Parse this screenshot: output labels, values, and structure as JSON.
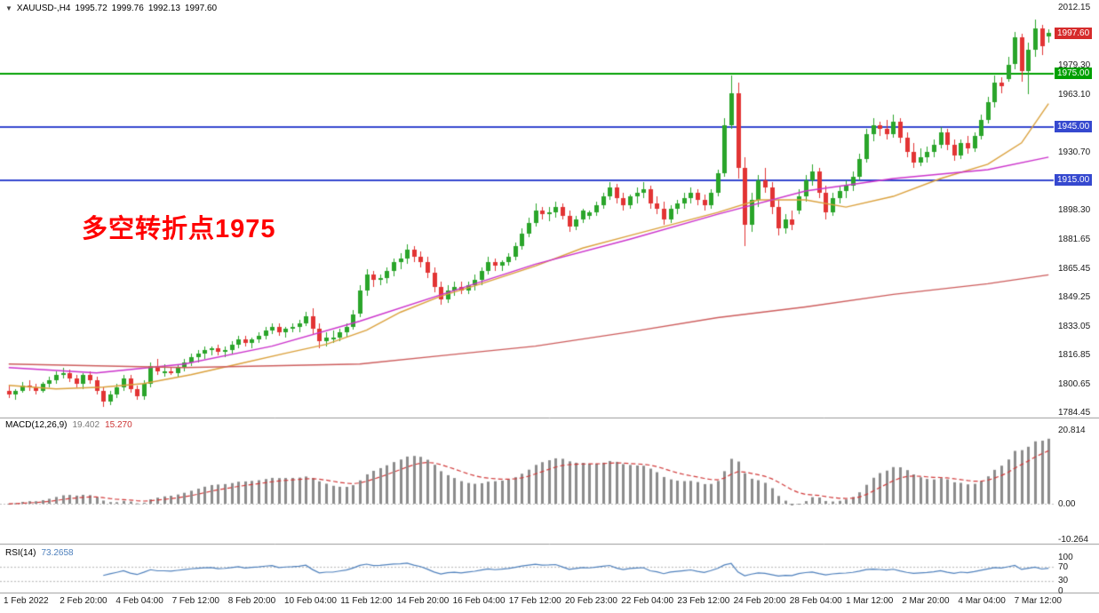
{
  "title_bar": {
    "collapse_icon": "▼",
    "symbol_period": "XAUUSD-,H4",
    "open": "1995.72",
    "high": "1999.76",
    "low": "1992.13",
    "close": "1997.60"
  },
  "annotation": {
    "text": "多空转折点1975",
    "color": "#ff0000"
  },
  "price_axis": {
    "labels": [
      {
        "text": "2012.15",
        "price": 2012.15
      },
      {
        "text": "1979.30",
        "price": 1979.3
      },
      {
        "text": "1963.10",
        "price": 1963.1
      },
      {
        "text": "1930.70",
        "price": 1930.7
      },
      {
        "text": "1898.30",
        "price": 1898.3
      },
      {
        "text": "1881.65",
        "price": 1881.65
      },
      {
        "text": "1865.45",
        "price": 1865.45
      },
      {
        "text": "1849.25",
        "price": 1849.25
      },
      {
        "text": "1833.05",
        "price": 1833.05
      },
      {
        "text": "1816.85",
        "price": 1816.85
      },
      {
        "text": "1800.65",
        "price": 1800.65
      },
      {
        "text": "1784.45",
        "price": 1784.45
      }
    ],
    "boxed": [
      {
        "text": "1997.60",
        "price": 1997.6,
        "bg": "#d62b2b"
      },
      {
        "text": "1975.00",
        "price": 1975.0,
        "bg": "#00a000"
      },
      {
        "text": "1945.00",
        "price": 1945.0,
        "bg": "#3548cf"
      },
      {
        "text": "1915.00",
        "price": 1915.0,
        "bg": "#3548cf"
      }
    ]
  },
  "macd_panel": {
    "label": "MACD(12,26,9)",
    "value_main": "19.402",
    "value_signal": "15.270",
    "axis": [
      "20.814",
      "0.00",
      "-10.264"
    ],
    "axis_values": [
      20.814,
      0,
      -10.264
    ]
  },
  "rsi_panel": {
    "label": "RSI(14)",
    "value": "73.2658",
    "axis": [
      "100",
      "70",
      "30",
      "0"
    ],
    "axis_values": [
      100,
      70,
      30,
      0
    ],
    "levels": [
      70,
      30
    ]
  },
  "chart_data": {
    "type": "candlestick",
    "symbol": "XAUUSD-",
    "timeframe": "H4",
    "ohlc_current": {
      "open": 1995.72,
      "high": 1999.76,
      "low": 1992.13,
      "close": 1997.6
    },
    "y_axis": {
      "min": 1784.45,
      "max": 2012.15,
      "tick_step": 16.2
    },
    "up_color": "#2aa52a",
    "down_color": "#e23434",
    "x_labels": [
      "1 Feb 2022",
      "2 Feb 20:00",
      "4 Feb 04:00",
      "7 Feb 12:00",
      "8 Feb 20:00",
      "10 Feb 04:00",
      "11 Feb 12:00",
      "14 Feb 20:00",
      "16 Feb 04:00",
      "17 Feb 12:00",
      "20 Feb 23:00",
      "22 Feb 04:00",
      "23 Feb 12:00",
      "24 Feb 20:00",
      "28 Feb 04:00",
      "1 Mar 12:00",
      "2 Mar 20:00",
      "4 Mar 04:00",
      "7 Mar 12:00"
    ],
    "horizontal_lines": [
      {
        "price": 1975.0,
        "color": "#00a000",
        "width": 2
      },
      {
        "price": 1945.0,
        "color": "#3548cf",
        "width": 2
      },
      {
        "price": 1915.0,
        "color": "#3548cf",
        "width": 2
      }
    ],
    "moving_averages": [
      {
        "name": "ma-fast",
        "color": "#dba13c",
        "points": [
          [
            0,
            1800
          ],
          [
            7,
            1798
          ],
          [
            14,
            1799
          ],
          [
            20,
            1801
          ],
          [
            27,
            1806
          ],
          [
            34,
            1812
          ],
          [
            41,
            1818
          ],
          [
            47,
            1823
          ],
          [
            53,
            1831
          ],
          [
            58,
            1841
          ],
          [
            64,
            1850
          ],
          [
            70,
            1857
          ],
          [
            78,
            1867
          ],
          [
            85,
            1877
          ],
          [
            92,
            1884
          ],
          [
            99,
            1891
          ],
          [
            105,
            1897
          ],
          [
            111,
            1904
          ],
          [
            118,
            1904
          ],
          [
            124,
            1900
          ],
          [
            131,
            1906
          ],
          [
            138,
            1916
          ],
          [
            145,
            1924
          ],
          [
            150,
            1936
          ],
          [
            154,
            1958
          ]
        ]
      },
      {
        "name": "ma-mid",
        "color": "#cc33cc",
        "points": [
          [
            0,
            1810
          ],
          [
            13,
            1807
          ],
          [
            26,
            1812
          ],
          [
            39,
            1822
          ],
          [
            52,
            1836
          ],
          [
            65,
            1852
          ],
          [
            78,
            1868
          ],
          [
            92,
            1882
          ],
          [
            105,
            1896
          ],
          [
            118,
            1909
          ],
          [
            131,
            1916
          ],
          [
            145,
            1921
          ],
          [
            154,
            1928
          ]
        ]
      },
      {
        "name": "ma-slow",
        "color": "#cd5c5c",
        "points": [
          [
            0,
            1812
          ],
          [
            26,
            1810
          ],
          [
            52,
            1812
          ],
          [
            65,
            1817
          ],
          [
            78,
            1822
          ],
          [
            92,
            1830
          ],
          [
            105,
            1838
          ],
          [
            118,
            1844
          ],
          [
            131,
            1851
          ],
          [
            145,
            1857
          ],
          [
            154,
            1862
          ]
        ]
      }
    ],
    "indicators": [
      {
        "type": "MACD",
        "params": [
          12,
          26,
          9
        ],
        "current_macd": 19.402,
        "current_signal": 15.27,
        "axis_ticks": [
          20.814,
          0.0,
          -10.264
        ]
      },
      {
        "type": "RSI",
        "params": [
          14
        ],
        "current": 73.2658,
        "axis_ticks": [
          100,
          70,
          30,
          0
        ],
        "levels": [
          70,
          30
        ]
      }
    ],
    "candles": [
      [
        1797,
        1800,
        1793,
        1795
      ],
      [
        1795,
        1798,
        1792,
        1797
      ],
      [
        1797,
        1802,
        1796,
        1800
      ],
      [
        1800,
        1803,
        1797,
        1799
      ],
      [
        1799,
        1801,
        1795,
        1797
      ],
      [
        1797,
        1802,
        1796,
        1801
      ],
      [
        1801,
        1805,
        1799,
        1803
      ],
      [
        1803,
        1808,
        1801,
        1806
      ],
      [
        1806,
        1810,
        1804,
        1807
      ],
      [
        1807,
        1809,
        1802,
        1804
      ],
      [
        1804,
        1806,
        1799,
        1801
      ],
      [
        1801,
        1807,
        1798,
        1806
      ],
      [
        1806,
        1808,
        1801,
        1803
      ],
      [
        1803,
        1805,
        1795,
        1797
      ],
      [
        1797,
        1799,
        1788,
        1791
      ],
      [
        1791,
        1797,
        1789,
        1795
      ],
      [
        1795,
        1801,
        1793,
        1799
      ],
      [
        1799,
        1806,
        1797,
        1804
      ],
      [
        1804,
        1806,
        1796,
        1798
      ],
      [
        1798,
        1800,
        1792,
        1794
      ],
      [
        1794,
        1803,
        1792,
        1801
      ],
      [
        1801,
        1813,
        1799,
        1811
      ],
      [
        1811,
        1815,
        1806,
        1808
      ],
      [
        1808,
        1812,
        1805,
        1808
      ],
      [
        1808,
        1810,
        1806,
        1807
      ],
      [
        1807,
        1812,
        1805,
        1810
      ],
      [
        1810,
        1815,
        1808,
        1813
      ],
      [
        1813,
        1818,
        1811,
        1816
      ],
      [
        1816,
        1820,
        1813,
        1818
      ],
      [
        1818,
        1822,
        1815,
        1820
      ],
      [
        1820,
        1822,
        1817,
        1821
      ],
      [
        1821,
        1823,
        1817,
        1819
      ],
      [
        1819,
        1822,
        1816,
        1820
      ],
      [
        1820,
        1825,
        1818,
        1823
      ],
      [
        1823,
        1828,
        1821,
        1826
      ],
      [
        1826,
        1828,
        1822,
        1824
      ],
      [
        1824,
        1827,
        1821,
        1826
      ],
      [
        1826,
        1830,
        1824,
        1828
      ],
      [
        1828,
        1833,
        1826,
        1831
      ],
      [
        1831,
        1835,
        1829,
        1833
      ],
      [
        1833,
        1835,
        1828,
        1830
      ],
      [
        1830,
        1833,
        1827,
        1832
      ],
      [
        1832,
        1835,
        1830,
        1833
      ],
      [
        1833,
        1837,
        1830,
        1835
      ],
      [
        1835,
        1841,
        1833,
        1839
      ],
      [
        1839,
        1843,
        1828,
        1832
      ],
      [
        1832,
        1835,
        1821,
        1825
      ],
      [
        1825,
        1830,
        1822,
        1827
      ],
      [
        1827,
        1831,
        1824,
        1827
      ],
      [
        1827,
        1832,
        1825,
        1830
      ],
      [
        1830,
        1835,
        1827,
        1833
      ],
      [
        1833,
        1842,
        1831,
        1840
      ],
      [
        1840,
        1856,
        1838,
        1853
      ],
      [
        1853,
        1865,
        1850,
        1862
      ],
      [
        1862,
        1864,
        1855,
        1859
      ],
      [
        1859,
        1862,
        1856,
        1860
      ],
      [
        1860,
        1866,
        1857,
        1864
      ],
      [
        1864,
        1871,
        1861,
        1869
      ],
      [
        1869,
        1874,
        1865,
        1871
      ],
      [
        1871,
        1879,
        1868,
        1876
      ],
      [
        1876,
        1878,
        1869,
        1872
      ],
      [
        1872,
        1875,
        1866,
        1869
      ],
      [
        1869,
        1872,
        1860,
        1863
      ],
      [
        1863,
        1866,
        1852,
        1855
      ],
      [
        1855,
        1858,
        1845,
        1848
      ],
      [
        1848,
        1856,
        1846,
        1853
      ],
      [
        1853,
        1858,
        1850,
        1855
      ],
      [
        1855,
        1858,
        1851,
        1853
      ],
      [
        1853,
        1858,
        1851,
        1856
      ],
      [
        1856,
        1862,
        1853,
        1859
      ],
      [
        1859,
        1866,
        1856,
        1864
      ],
      [
        1864,
        1872,
        1862,
        1869
      ],
      [
        1869,
        1871,
        1864,
        1867
      ],
      [
        1867,
        1870,
        1864,
        1869
      ],
      [
        1869,
        1874,
        1867,
        1872
      ],
      [
        1872,
        1880,
        1870,
        1878
      ],
      [
        1878,
        1888,
        1876,
        1885
      ],
      [
        1885,
        1894,
        1883,
        1891
      ],
      [
        1891,
        1902,
        1889,
        1898
      ],
      [
        1898,
        1900,
        1893,
        1896
      ],
      [
        1896,
        1900,
        1892,
        1897
      ],
      [
        1897,
        1903,
        1894,
        1900
      ],
      [
        1900,
        1902,
        1893,
        1895
      ],
      [
        1895,
        1898,
        1886,
        1889
      ],
      [
        1889,
        1895,
        1887,
        1893
      ],
      [
        1893,
        1899,
        1891,
        1898
      ],
      [
        1895,
        1898,
        1893,
        1897
      ],
      [
        1897,
        1903,
        1895,
        1901
      ],
      [
        1901,
        1908,
        1899,
        1906
      ],
      [
        1906,
        1914,
        1904,
        1911
      ],
      [
        1911,
        1913,
        1902,
        1905
      ],
      [
        1905,
        1908,
        1898,
        1901
      ],
      [
        1901,
        1907,
        1899,
        1906
      ],
      [
        1906,
        1911,
        1902,
        1908
      ],
      [
        1908,
        1914,
        1905,
        1910
      ],
      [
        1910,
        1912,
        1899,
        1902
      ],
      [
        1902,
        1906,
        1896,
        1899
      ],
      [
        1899,
        1903,
        1890,
        1893
      ],
      [
        1893,
        1901,
        1891,
        1899
      ],
      [
        1899,
        1904,
        1896,
        1902
      ],
      [
        1902,
        1908,
        1899,
        1905
      ],
      [
        1905,
        1911,
        1902,
        1908
      ],
      [
        1908,
        1910,
        1901,
        1904
      ],
      [
        1904,
        1907,
        1898,
        1901
      ],
      [
        1901,
        1910,
        1899,
        1908
      ],
      [
        1908,
        1921,
        1906,
        1919
      ],
      [
        1919,
        1950,
        1917,
        1946
      ],
      [
        1946,
        1974,
        1944,
        1964
      ],
      [
        1964,
        1970,
        1916,
        1922
      ],
      [
        1922,
        1928,
        1878,
        1890
      ],
      [
        1890,
        1908,
        1886,
        1904
      ],
      [
        1904,
        1918,
        1900,
        1915
      ],
      [
        1915,
        1922,
        1908,
        1911
      ],
      [
        1911,
        1914,
        1896,
        1900
      ],
      [
        1900,
        1904,
        1884,
        1888
      ],
      [
        1888,
        1896,
        1885,
        1893
      ],
      [
        1893,
        1898,
        1887,
        1890
      ],
      [
        1898,
        1910,
        1896,
        1906
      ],
      [
        1906,
        1918,
        1903,
        1915
      ],
      [
        1915,
        1924,
        1912,
        1920
      ],
      [
        1920,
        1922,
        1905,
        1908
      ],
      [
        1908,
        1912,
        1893,
        1897
      ],
      [
        1897,
        1908,
        1895,
        1905
      ],
      [
        1905,
        1912,
        1902,
        1909
      ],
      [
        1909,
        1915,
        1905,
        1912
      ],
      [
        1912,
        1920,
        1909,
        1917
      ],
      [
        1917,
        1930,
        1915,
        1927
      ],
      [
        1927,
        1944,
        1925,
        1941
      ],
      [
        1941,
        1950,
        1937,
        1946
      ],
      [
        1946,
        1948,
        1940,
        1944
      ],
      [
        1944,
        1949,
        1938,
        1941
      ],
      [
        1941,
        1952,
        1939,
        1948
      ],
      [
        1948,
        1950,
        1936,
        1939
      ],
      [
        1939,
        1942,
        1928,
        1931
      ],
      [
        1931,
        1936,
        1922,
        1925
      ],
      [
        1925,
        1933,
        1923,
        1928
      ],
      [
        1928,
        1934,
        1925,
        1931
      ],
      [
        1931,
        1938,
        1928,
        1935
      ],
      [
        1935,
        1945,
        1933,
        1942
      ],
      [
        1942,
        1944,
        1932,
        1935
      ],
      [
        1935,
        1938,
        1926,
        1929
      ],
      [
        1929,
        1938,
        1927,
        1936
      ],
      [
        1936,
        1940,
        1930,
        1933
      ],
      [
        1933,
        1942,
        1931,
        1940
      ],
      [
        1940,
        1952,
        1938,
        1949
      ],
      [
        1949,
        1962,
        1947,
        1959
      ],
      [
        1959,
        1974,
        1956,
        1970
      ],
      [
        1970,
        1973,
        1964,
        1968
      ],
      [
        1972,
        1984,
        1970,
        1980
      ],
      [
        1980,
        1998,
        1977,
        1995
      ],
      [
        1995,
        1997,
        1970,
        1976
      ],
      [
        1976,
        1992,
        1963,
        1988
      ],
      [
        1988,
        2005,
        1984,
        2000
      ],
      [
        2000,
        2002,
        1985,
        1990
      ],
      [
        1995.72,
        1999.76,
        1992.13,
        1997.6
      ]
    ]
  }
}
